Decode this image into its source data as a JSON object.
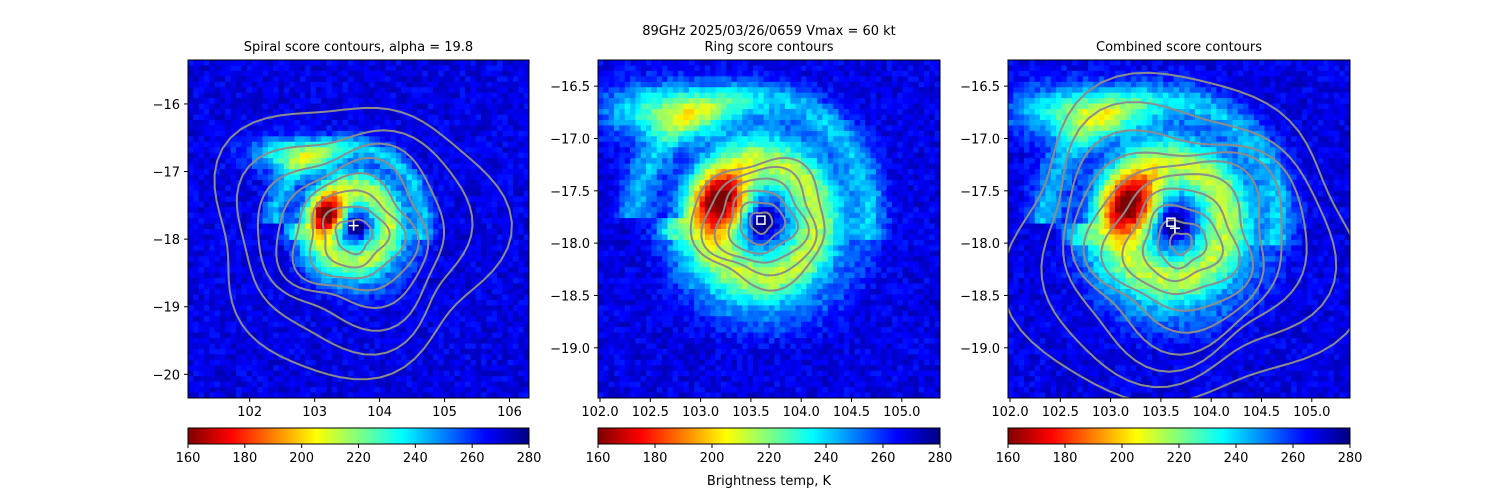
{
  "figure": {
    "suptitle_line1": "89GHz  2025/03/26/0659    Vmax = 60 kt",
    "colorbar_label": "Brightness temp, K"
  },
  "colors": {
    "colormap": [
      "#7f0000",
      "#ff0000",
      "#ff8000",
      "#ffff00",
      "#80ff80",
      "#00ffff",
      "#0080ff",
      "#0000ff",
      "#00007f"
    ],
    "contour": "#8c8c8c",
    "marker": "#ffffff"
  },
  "chart_data": [
    {
      "type": "heatmap",
      "title": "Spiral score contours, alpha = 19.8",
      "xlim": [
        101.05,
        106.3
      ],
      "ylim": [
        -20.35,
        -15.35
      ],
      "xticks": [
        102,
        103,
        104,
        105,
        106
      ],
      "yticks": [
        -16,
        -17,
        -18,
        -19,
        -20
      ],
      "eye": {
        "lon": 103.6,
        "lat": -17.8
      },
      "marker": "plus",
      "contours": {
        "center": {
          "lon": 103.6,
          "lat": -17.95
        },
        "radii_deg": [
          0.25,
          0.45,
          0.65,
          0.85,
          1.05,
          1.3,
          1.6,
          2.0
        ]
      },
      "colorbar": {
        "vmin": 160,
        "vmax": 280,
        "ticks": [
          160,
          180,
          200,
          220,
          240,
          260,
          280
        ]
      }
    },
    {
      "type": "heatmap",
      "title": "Ring score contours",
      "xlim": [
        101.98,
        105.38
      ],
      "ylim": [
        -19.48,
        -16.25
      ],
      "xticks": [
        102.0,
        102.5,
        103.0,
        103.5,
        104.0,
        104.5,
        105.0
      ],
      "yticks": [
        -16.5,
        -17.0,
        -17.5,
        -18.0,
        -18.5,
        -19.0
      ],
      "eye": {
        "lon": 103.6,
        "lat": -17.78
      },
      "marker": "square",
      "contours": {
        "center": {
          "lon": 103.6,
          "lat": -17.8
        },
        "radii_deg": [
          0.1,
          0.2,
          0.3,
          0.4,
          0.5,
          0.6
        ]
      },
      "colorbar": {
        "vmin": 160,
        "vmax": 280,
        "ticks": [
          160,
          180,
          200,
          220,
          240,
          260,
          280
        ]
      }
    },
    {
      "type": "heatmap",
      "title": "Combined score contours",
      "xlim": [
        101.98,
        105.38
      ],
      "ylim": [
        -19.48,
        -16.25
      ],
      "xticks": [
        102.0,
        102.5,
        103.0,
        103.5,
        104.0,
        104.5,
        105.0
      ],
      "yticks": [
        -16.5,
        -17.0,
        -17.5,
        -18.0,
        -18.5,
        -19.0
      ],
      "eye": {
        "lon": 103.6,
        "lat": -17.8
      },
      "marker": "square-plus",
      "contours": {
        "center": {
          "lon": 103.7,
          "lat": -18.0
        },
        "radii_deg": [
          0.1,
          0.22,
          0.35,
          0.5,
          0.65,
          0.8,
          0.95,
          1.1,
          1.3,
          1.55
        ]
      },
      "colorbar": {
        "vmin": 160,
        "vmax": 280,
        "ticks": [
          160,
          180,
          200,
          220,
          240,
          260,
          280
        ]
      }
    }
  ]
}
